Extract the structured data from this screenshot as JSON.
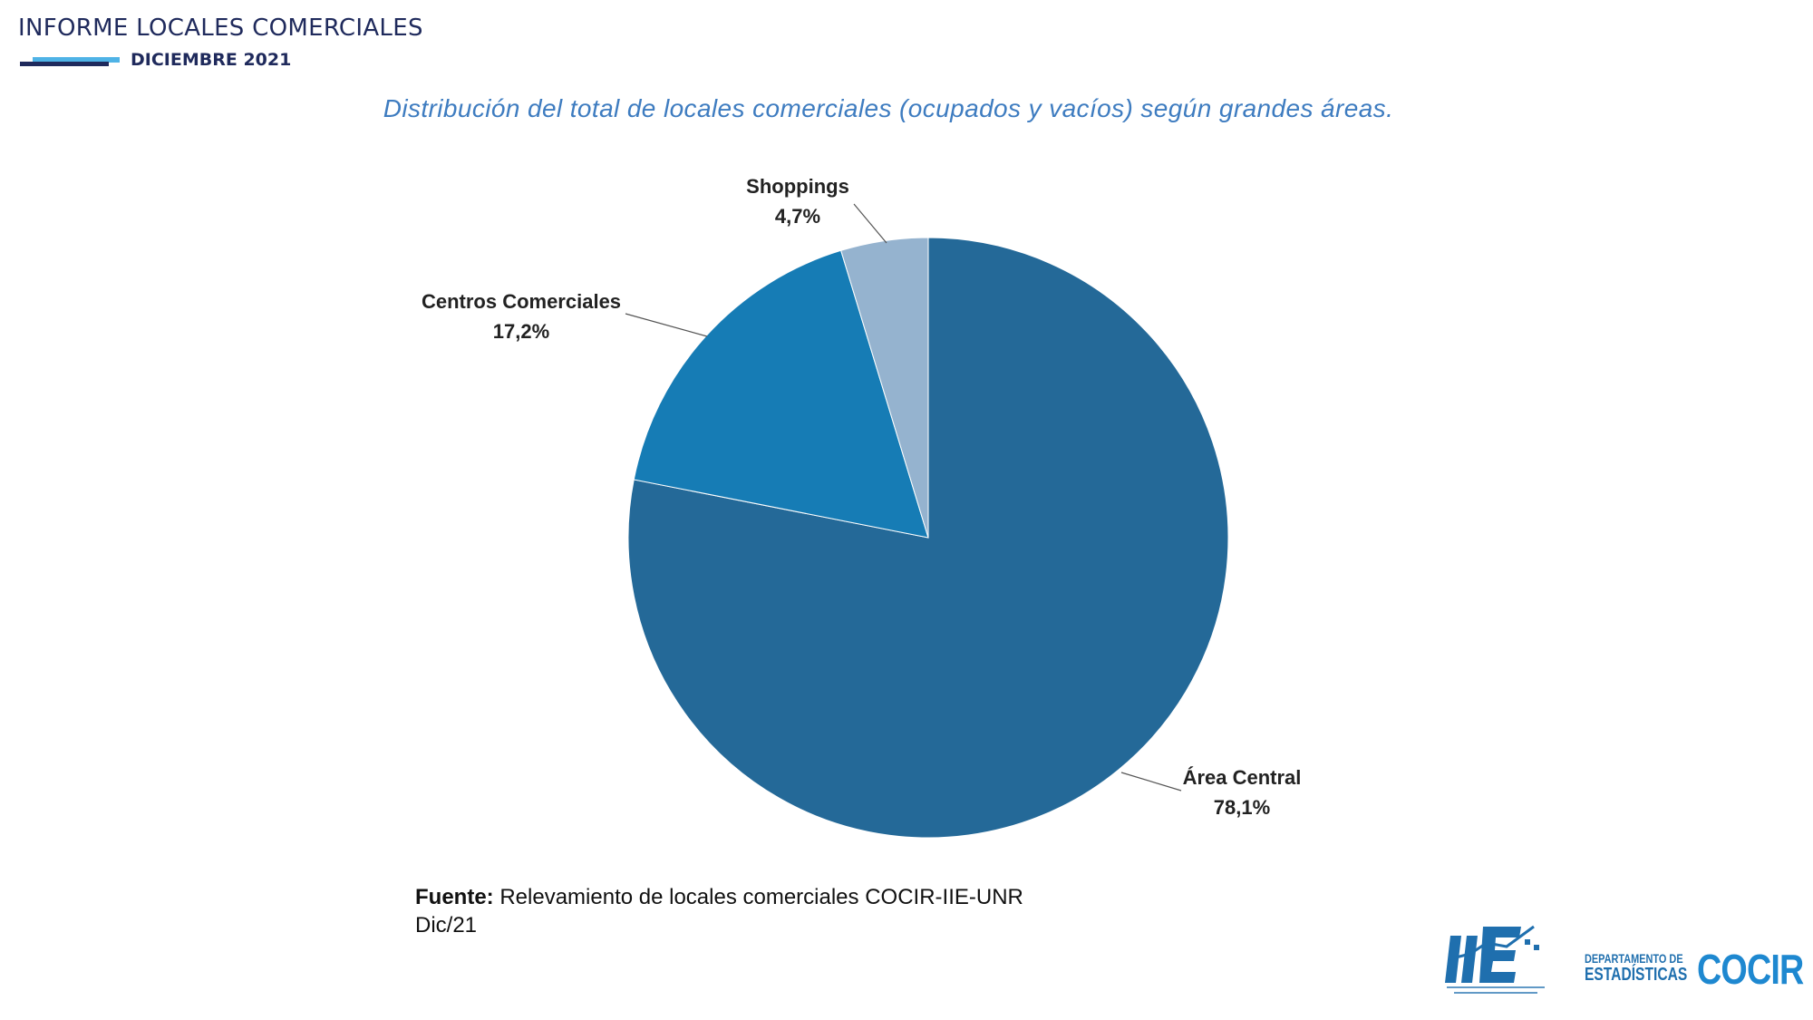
{
  "header": {
    "title": "INFORME LOCALES COMERCIALES",
    "date": "DICIEMBRE 2021"
  },
  "chart_data": {
    "type": "pie",
    "title": "Distribución del total de locales comerciales (ocupados y vacíos) según grandes áreas.",
    "slices": [
      {
        "label": "Área Central",
        "value": 78.1,
        "value_label": "78,1%",
        "color": "#246998"
      },
      {
        "label": "Centros Comerciales",
        "value": 17.2,
        "value_label": "17,2%",
        "color": "#167cb5"
      },
      {
        "label": "Shoppings",
        "value": 4.7,
        "value_label": "4,7%",
        "color": "#95b3cf"
      }
    ],
    "start": "12 o'clock",
    "direction": "clockwise"
  },
  "source": {
    "label": "Fuente:",
    "text": "Relevamiento de locales comerciales COCIR-IIE-UNR",
    "date": "Dic/21"
  },
  "logos": {
    "iie": "IIE",
    "department_line1": "DEPARTAMENTO DE",
    "department_line2": "ESTADÍSTICAS",
    "cocir": "COCIR"
  }
}
